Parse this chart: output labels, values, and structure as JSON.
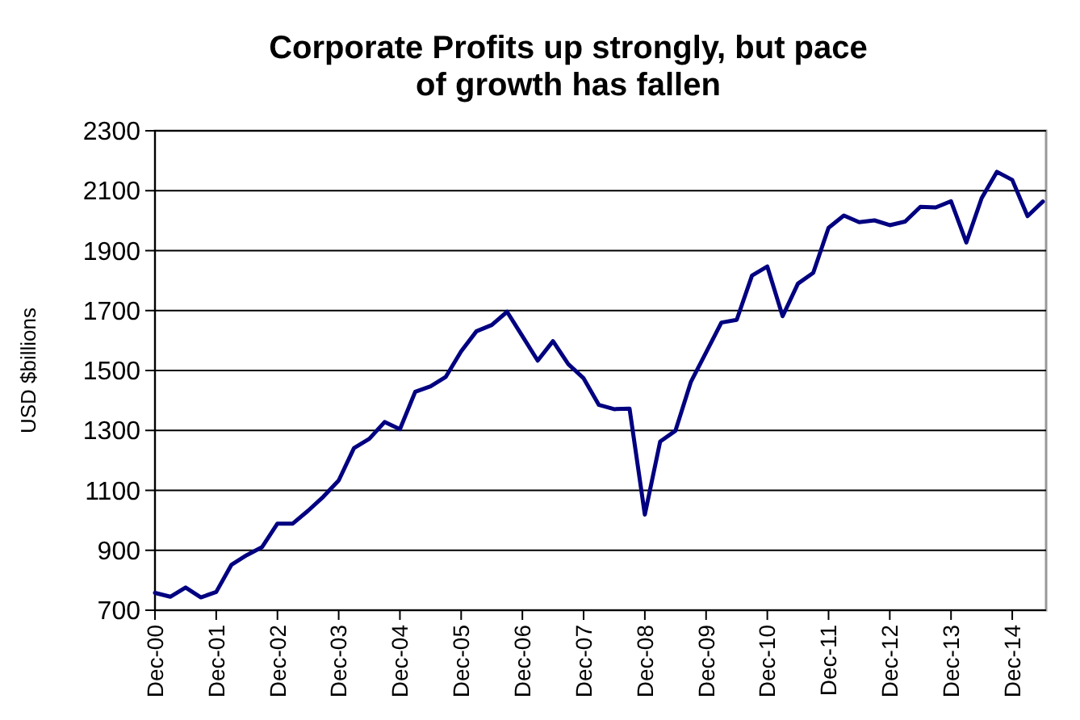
{
  "chart_data": {
    "type": "line",
    "title": "Corporate Profits up strongly, but pace of growth has fallen",
    "ylabel": "USD $billions",
    "categories": [
      "Dec-00",
      null,
      null,
      null,
      "Dec-01",
      null,
      null,
      null,
      "Dec-02",
      null,
      null,
      null,
      "Dec-03",
      null,
      null,
      null,
      "Dec-04",
      null,
      null,
      null,
      "Dec-05",
      null,
      null,
      null,
      "Dec-06",
      null,
      null,
      null,
      "Dec-07",
      null,
      null,
      null,
      "Dec-08",
      null,
      null,
      null,
      "Dec-09",
      null,
      null,
      null,
      "Dec-10",
      null,
      null,
      null,
      "Dec-11",
      null,
      null,
      null,
      "Dec-12",
      null,
      null,
      null,
      "Dec-13",
      null,
      null,
      null,
      "Dec-14",
      null,
      null
    ],
    "series": [
      {
        "color": "#000080",
        "values": [
          758,
          745,
          776,
          743,
          761,
          852,
          884,
          911,
          989,
          989,
          1032,
          1079,
          1133,
          1241,
          1272,
          1328,
          1304,
          1429,
          1447,
          1479,
          1564,
          1631,
          1652,
          1696,
          1615,
          1533,
          1598,
          1521,
          1474,
          1385,
          1371,
          1373,
          1019,
          1263,
          1299,
          1461,
          1560,
          1660,
          1669,
          1817,
          1847,
          1681,
          1790,
          1826,
          1976,
          2017,
          1995,
          2001,
          1985,
          1997,
          2046,
          2044,
          2065,
          1927,
          2075,
          2163,
          2136,
          2015,
          2064
        ]
      }
    ],
    "ylim": [
      700,
      2300
    ],
    "yticks": [
      700,
      900,
      1100,
      1300,
      1500,
      1700,
      1900,
      2100,
      2300
    ],
    "grid": "y",
    "marker": "none",
    "line_style": "solid"
  }
}
